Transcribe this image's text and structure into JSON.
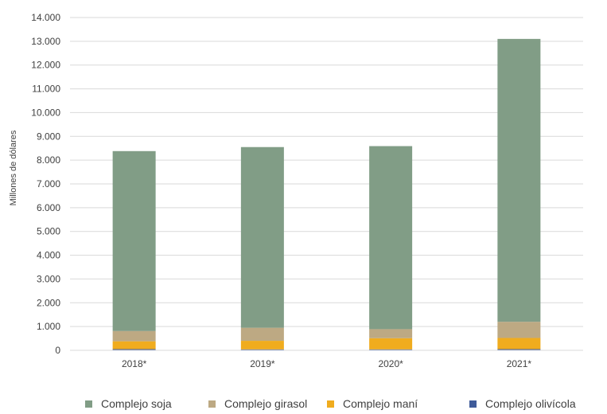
{
  "chart_data": {
    "type": "bar",
    "stacked": true,
    "title": "",
    "xlabel": "",
    "ylabel": "Millones de dólares",
    "ylim": [
      0,
      14000
    ],
    "ytick_step": 1000,
    "ytick_labels": [
      "0",
      "1.000",
      "2.000",
      "3.000",
      "4.000",
      "5.000",
      "6.000",
      "7.000",
      "8.000",
      "9.000",
      "10.000",
      "11.000",
      "12.000",
      "13.000",
      "14.000"
    ],
    "grid": true,
    "legend_position": "bottom",
    "categories": [
      "2018*",
      "2019*",
      "2020*",
      "2021*"
    ],
    "series": [
      {
        "name": "Complejo olivícola",
        "color": "#3f5b9a",
        "values": [
          50,
          40,
          40,
          50
        ]
      },
      {
        "name": "Complejo maní",
        "color": "#f0ac1e",
        "values": [
          330,
          360,
          470,
          470
        ]
      },
      {
        "name": "Complejo girasol",
        "color": "#bda983",
        "values": [
          430,
          550,
          380,
          680
        ]
      },
      {
        "name": "Complejo soja",
        "color": "#819d86",
        "values": [
          7570,
          7600,
          7700,
          11900
        ]
      }
    ],
    "legend_order": [
      "Complejo soja",
      "Complejo girasol",
      "Complejo maní",
      "Complejo olivícola"
    ]
  }
}
